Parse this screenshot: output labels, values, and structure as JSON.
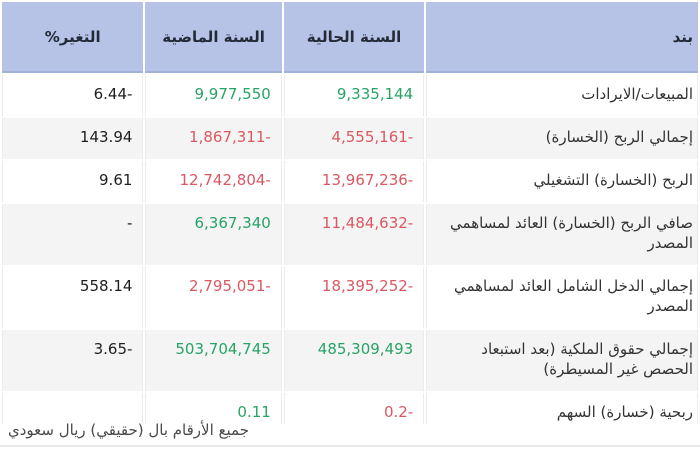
{
  "table": {
    "headers": {
      "item": "بند",
      "current_year": "السنة الحالية",
      "previous_year": "السنة الماضية",
      "change_pct": "التغير%"
    },
    "rows": [
      {
        "item": "المبيعات/الايرادات",
        "current": {
          "text": "9,335,144",
          "tone": "pos"
        },
        "previous": {
          "text": "9,977,550",
          "tone": "pos"
        },
        "change": "6.44-"
      },
      {
        "item": "إجمالي الربح (الخسارة)",
        "current": {
          "text": "4,555,161-",
          "tone": "neg"
        },
        "previous": {
          "text": "1,867,311-",
          "tone": "neg"
        },
        "change": "143.94"
      },
      {
        "item": "الربح (الخسارة) التشغيلي",
        "current": {
          "text": "13,967,236-",
          "tone": "neg"
        },
        "previous": {
          "text": "12,742,804-",
          "tone": "neg"
        },
        "change": "9.61"
      },
      {
        "item": "صافي الربح (الخسارة) العائد لمساهمي المصدر",
        "current": {
          "text": "11,484,632-",
          "tone": "neg"
        },
        "previous": {
          "text": "6,367,340",
          "tone": "pos"
        },
        "change": "-"
      },
      {
        "item": "إجمالي الدخل الشامل العائد لمساهمي المصدر",
        "current": {
          "text": "18,395,252-",
          "tone": "neg"
        },
        "previous": {
          "text": "2,795,051-",
          "tone": "neg"
        },
        "change": "558.14"
      },
      {
        "item": "إجمالي حقوق الملكية (بعد استبعاد الحصص غير المسيطرة)",
        "current": {
          "text": "485,309,493",
          "tone": "pos"
        },
        "previous": {
          "text": "503,704,745",
          "tone": "pos"
        },
        "change": "3.65-"
      },
      {
        "item": "ربحية (خسارة) السهم",
        "current": {
          "text": "0.2-",
          "tone": "neg"
        },
        "previous": {
          "text": "0.11",
          "tone": "pos"
        },
        "change": ""
      }
    ]
  },
  "footer": {
    "note": "جميع الأرقام بال (حقيقي) ريال سعودي"
  },
  "colors": {
    "positive": "#27a366",
    "negative": "#da5862",
    "header_background": "#b7c3e6",
    "row_stripe": "#f4f4f4"
  }
}
